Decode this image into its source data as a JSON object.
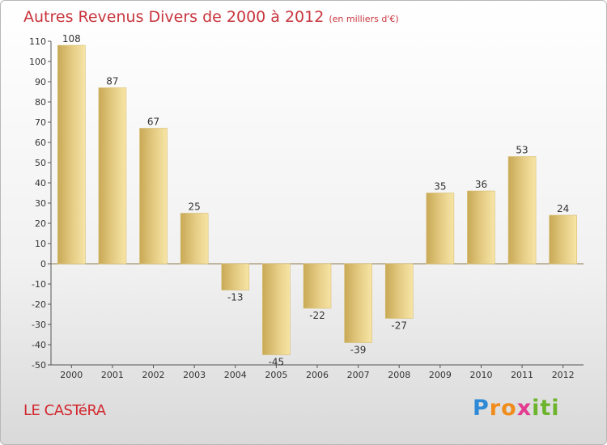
{
  "chart_data": {
    "type": "bar",
    "title": "Autres Revenus Divers de 2000 à 2012",
    "subtitle": "(en milliers d'€)",
    "categories": [
      "2000",
      "2001",
      "2002",
      "2003",
      "2004",
      "2005",
      "2006",
      "2007",
      "2008",
      "2009",
      "2010",
      "2011",
      "2012"
    ],
    "values": [
      108,
      87,
      67,
      25,
      -13,
      -45,
      -22,
      -39,
      -27,
      35,
      36,
      53,
      24
    ],
    "ylim": [
      -50,
      110
    ],
    "yticks": [
      110,
      100,
      90,
      80,
      70,
      60,
      50,
      40,
      30,
      20,
      10,
      0,
      -10,
      -20,
      -30,
      -40,
      -50
    ],
    "grid": false,
    "bar_color": "#e9cf86"
  },
  "place_name": "LE CASTéRA",
  "logo": {
    "letters": [
      "P",
      "r",
      "o",
      "x",
      "i",
      "t",
      "i"
    ],
    "colors": [
      "#2e8ad6",
      "#f08c1c",
      "#f08c1c",
      "#e23b8f",
      "#6cb42c",
      "#6cb42c",
      "#6cb42c"
    ]
  }
}
